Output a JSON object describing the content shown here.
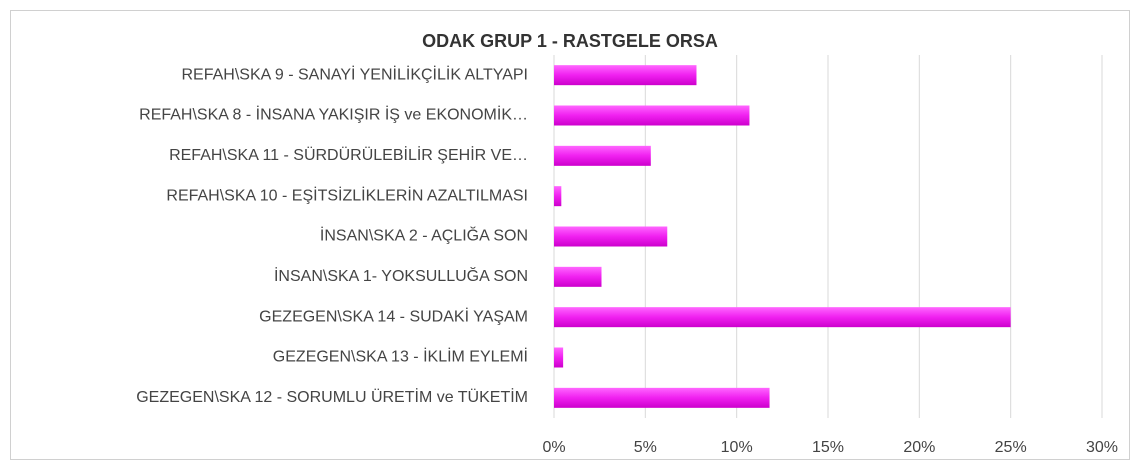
{
  "chart_data": {
    "type": "bar",
    "orientation": "horizontal",
    "title": "ODAK GRUP 1 - RASTGELE ORSA",
    "categories": [
      "REFAH\\SKA 9 -  SANAYİ YENİLİKÇİLİK ALTYAPI",
      "REFAH\\SKA 8 - İNSANA YAKIŞIR İŞ ve EKONOMİK…",
      "REFAH\\SKA 11 - SÜRDÜRÜLEBİLİR ŞEHİR VE…",
      "REFAH\\SKA 10 - EŞİTSİZLİKLERİN AZALTILMASI",
      "İNSAN\\SKA 2 - AÇLIĞA SON",
      "İNSAN\\SKA 1- YOKSULLUĞA SON",
      "GEZEGEN\\SKA 14 - SUDAKİ YAŞAM",
      "GEZEGEN\\SKA 13 - İKLİM EYLEMİ",
      "GEZEGEN\\SKA 12 - SORUMLU ÜRETİM ve TÜKETİM"
    ],
    "values": [
      7.8,
      10.7,
      5.3,
      0.4,
      6.2,
      2.6,
      25,
      0.5,
      11.8
    ],
    "color": "#f020f0",
    "xlim": [
      0,
      30
    ],
    "xticks": [
      {
        "value": 0,
        "label": "0%"
      },
      {
        "value": 5,
        "label": "5%"
      },
      {
        "value": 10,
        "label": "10%"
      },
      {
        "value": 15,
        "label": "15%"
      },
      {
        "value": 20,
        "label": "20%"
      },
      {
        "value": 25,
        "label": "25%"
      },
      {
        "value": 30,
        "label": "30%"
      }
    ],
    "grid": true
  }
}
